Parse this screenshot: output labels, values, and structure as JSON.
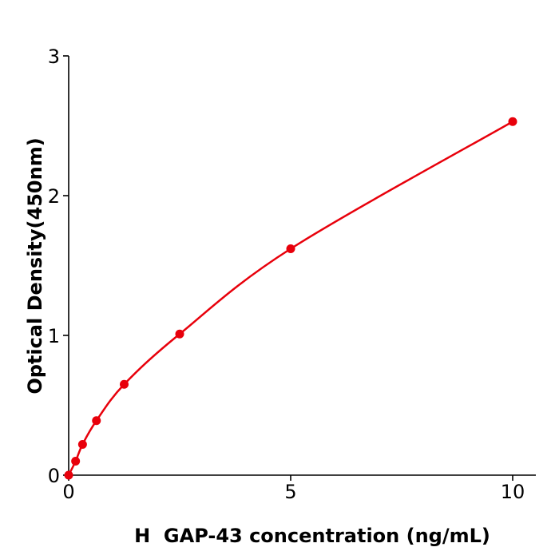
{
  "chart_data": {
    "type": "line",
    "xlabel": "H  GAP-43 concentration (ng/mL)",
    "ylabel": "Optical Density(450nm)",
    "xlim": [
      0,
      10.5
    ],
    "ylim": [
      0,
      3
    ],
    "xticks": [
      "0",
      "5",
      "10"
    ],
    "yticks": [
      "0",
      "1",
      "2",
      "3"
    ],
    "grid": false,
    "color": "#e8000b",
    "series": [
      {
        "x": [
          0,
          0.156,
          0.3125,
          0.625,
          1.25,
          2.5,
          5,
          10
        ],
        "y": [
          0.0,
          0.1,
          0.22,
          0.39,
          0.65,
          1.01,
          1.62,
          2.53
        ]
      }
    ]
  }
}
